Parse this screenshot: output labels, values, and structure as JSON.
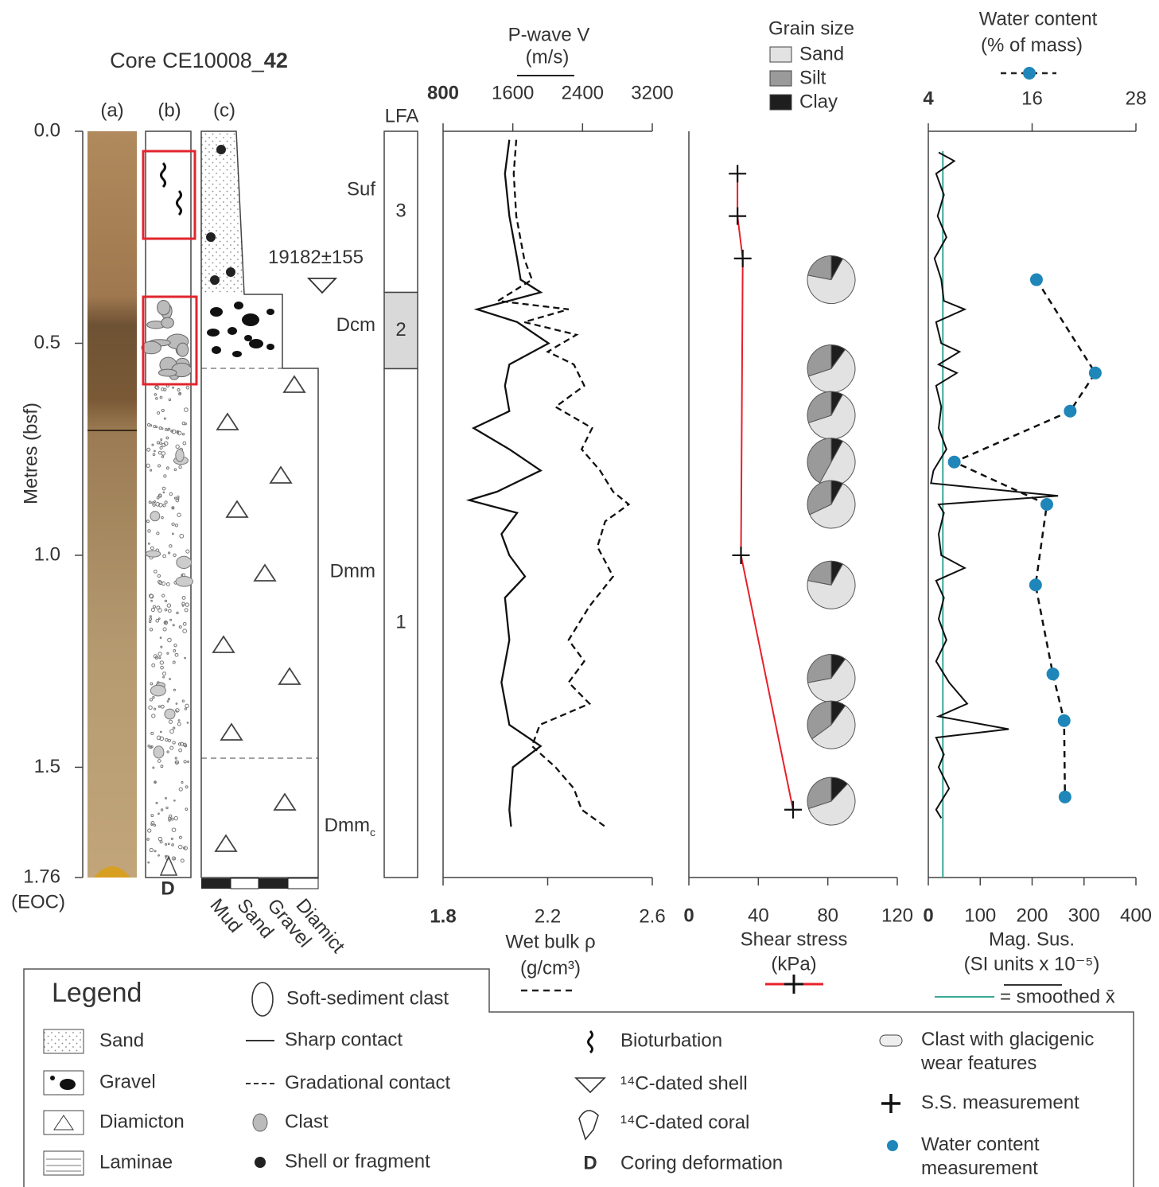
{
  "core": {
    "title": "Core CE10008_",
    "title_bold": "42",
    "columns": [
      "(a)",
      "(b)",
      "(c)"
    ],
    "deformation_mark": "D",
    "grain_scale": [
      "Mud",
      "Sand",
      "Gravel",
      "Diamict"
    ]
  },
  "chart_data": [
    {
      "type": "depth-log",
      "ylabel": "Metres (bsf)",
      "ylim": [
        0,
        1.76
      ],
      "yticks": [
        {
          "value": 0,
          "label": "0.0"
        },
        0.5,
        {
          "value": 1,
          "label": "1.0"
        },
        1.5,
        1.76
      ],
      "end_label": "(EOC)",
      "lfa_title": "LFA",
      "units": [
        {
          "name": "3",
          "top": 0,
          "bottom": 0.38
        },
        {
          "name": "2",
          "top": 0.38,
          "bottom": 0.56
        },
        {
          "name": "1",
          "top": 0.56,
          "bottom": 1.76
        }
      ],
      "facies": [
        {
          "label": "Suf",
          "depth": 0.14
        },
        {
          "label": "Dcm",
          "depth": 0.46
        },
        {
          "label": "Dmm",
          "depth": 1.04
        },
        {
          "label": "Dmm",
          "sub": "c",
          "depth": 1.64
        }
      ],
      "dates": [
        {
          "label": "19182±155",
          "depth": 0.3
        }
      ]
    },
    {
      "type": "line",
      "title": "P-wave V",
      "title_unit": "(m/s)",
      "xlabel": "Wet bulk ρ",
      "xlabel_unit": "(g/cm³)",
      "xlim": [
        1.8,
        2.6
      ],
      "xticks": [
        1.8,
        2.2,
        2.6
      ],
      "x2lim": [
        800,
        3200
      ],
      "x2ticks": [
        800,
        1600,
        2400,
        3200
      ],
      "series": [
        {
          "axis": "x2",
          "style": "solid",
          "depth": [
            0.02,
            0.1,
            0.2,
            0.3,
            0.35,
            0.38,
            0.42,
            0.45,
            0.5,
            0.55,
            0.6,
            0.66,
            0.7,
            0.75,
            0.8,
            0.85,
            0.87,
            0.9,
            0.95,
            1.0,
            1.05,
            1.1,
            1.2,
            1.3,
            1.4,
            1.45,
            1.5,
            1.6,
            1.64
          ],
          "values": [
            1560,
            1510,
            1560,
            1650,
            1690,
            1920,
            1190,
            1650,
            2010,
            1560,
            1510,
            1560,
            1150,
            1560,
            1920,
            1420,
            1100,
            1650,
            1470,
            1560,
            1740,
            1510,
            1560,
            1470,
            1560,
            1920,
            1600,
            1560,
            1580
          ]
        },
        {
          "axis": "x",
          "style": "dashed",
          "depth": [
            0.02,
            0.1,
            0.2,
            0.3,
            0.35,
            0.4,
            0.42,
            0.45,
            0.48,
            0.52,
            0.55,
            0.6,
            0.65,
            0.7,
            0.75,
            0.8,
            0.85,
            0.88,
            0.92,
            0.98,
            1.05,
            1.12,
            1.2,
            1.25,
            1.3,
            1.35,
            1.4,
            1.45,
            1.5,
            1.55,
            1.6,
            1.64
          ],
          "values": [
            2.08,
            2.07,
            2.08,
            2.11,
            2.14,
            2.01,
            2.28,
            2.11,
            2.31,
            2.2,
            2.3,
            2.34,
            2.23,
            2.37,
            2.33,
            2.4,
            2.45,
            2.51,
            2.42,
            2.39,
            2.45,
            2.36,
            2.28,
            2.34,
            2.28,
            2.36,
            2.17,
            2.14,
            2.23,
            2.3,
            2.33,
            2.42
          ]
        }
      ]
    },
    {
      "type": "shear-grain",
      "xlabel": "Shear stress",
      "xlabel_unit": "(kPa)",
      "xlim": [
        0,
        120
      ],
      "xticks": [
        0,
        40,
        80,
        120
      ],
      "color": "#e8202a",
      "shear": {
        "depth": [
          0.1,
          0.2,
          0.3,
          1.0,
          1.6
        ],
        "values": [
          28,
          28,
          31,
          30,
          60
        ]
      },
      "grain_title": "Grain size",
      "grain_classes": [
        {
          "name": "Sand",
          "color": "#e2e2e2"
        },
        {
          "name": "Silt",
          "color": "#9a9a9a"
        },
        {
          "name": "Clay",
          "color": "#1e1e1e"
        }
      ],
      "pies": [
        {
          "depth": 0.35,
          "values": [
            70,
            22,
            8
          ]
        },
        {
          "depth": 0.56,
          "values": [
            60,
            30,
            10
          ]
        },
        {
          "depth": 0.67,
          "values": [
            62,
            30,
            8
          ]
        },
        {
          "depth": 0.78,
          "values": [
            50,
            42,
            8
          ]
        },
        {
          "depth": 0.88,
          "values": [
            60,
            32,
            8
          ]
        },
        {
          "depth": 1.07,
          "values": [
            70,
            22,
            8
          ]
        },
        {
          "depth": 1.29,
          "values": [
            62,
            28,
            10
          ]
        },
        {
          "depth": 1.4,
          "values": [
            55,
            35,
            10
          ]
        },
        {
          "depth": 1.58,
          "values": [
            58,
            30,
            12
          ]
        }
      ]
    },
    {
      "type": "line-scatter",
      "xlabel": "Mag. Sus.",
      "xlabel_unit": "(SI units x 10⁻⁵)",
      "xlim": [
        0,
        400
      ],
      "xticks": [
        0,
        100,
        200,
        300,
        400
      ],
      "x2label": "Water content",
      "x2label_unit": "(% of mass)",
      "x2lim": [
        4,
        28
      ],
      "x2ticks": [
        4,
        16,
        28
      ],
      "magsus": {
        "color": "#111111",
        "depth": [
          0.05,
          0.07,
          0.1,
          0.15,
          0.2,
          0.25,
          0.3,
          0.35,
          0.4,
          0.42,
          0.45,
          0.5,
          0.52,
          0.55,
          0.57,
          0.6,
          0.65,
          0.7,
          0.75,
          0.8,
          0.83,
          0.86,
          0.88,
          0.9,
          0.95,
          1.0,
          1.03,
          1.06,
          1.1,
          1.15,
          1.2,
          1.25,
          1.3,
          1.35,
          1.38,
          1.41,
          1.43,
          1.47,
          1.5,
          1.55,
          1.6,
          1.62
        ],
        "values": [
          20,
          50,
          15,
          30,
          18,
          35,
          12,
          25,
          30,
          70,
          15,
          25,
          60,
          20,
          55,
          15,
          25,
          20,
          35,
          10,
          5,
          250,
          20,
          30,
          20,
          25,
          70,
          15,
          30,
          20,
          35,
          15,
          40,
          75,
          20,
          155,
          15,
          30,
          20,
          40,
          15,
          25
        ]
      },
      "smoothed_mean": 28,
      "smoothed_label": "= smoothed x̄",
      "smoothed_color": "#3aa897",
      "water": {
        "color": "#1f86b9",
        "depth": [
          0.35,
          0.57,
          0.66,
          0.78,
          0.88,
          1.07,
          1.28,
          1.39,
          1.57
        ],
        "values": [
          16.5,
          23.3,
          20.4,
          7.0,
          17.7,
          16.4,
          18.4,
          19.7,
          19.8
        ]
      }
    }
  ],
  "legend": {
    "title": "Legend",
    "coring_icon": "D",
    "items": [
      "Soft-sediment clast",
      "Sand",
      "Gravel",
      "Diamicton",
      "Laminae",
      "Sharp contact",
      "Gradational contact",
      "Clast",
      "Shell or fragment",
      "Bioturbation",
      "¹⁴C-dated shell",
      "¹⁴C-dated coral",
      "Coring deformation",
      "Clast with glacigenic wear features",
      "S.S. measurement",
      "Water content measurement"
    ]
  }
}
